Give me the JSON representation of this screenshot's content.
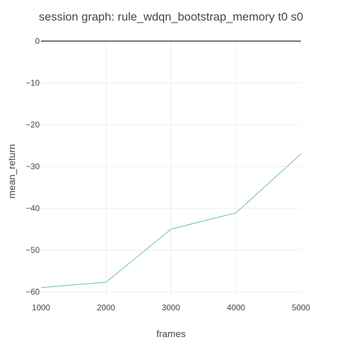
{
  "chart_data": {
    "type": "line",
    "title": "session graph: rule_wdqn_bootstrap_memory t0 s0",
    "xlabel": "frames",
    "ylabel": "mean_return",
    "xlim": [
      1000,
      5000
    ],
    "ylim": [
      -61,
      0
    ],
    "x_ticks": [
      1000,
      2000,
      3000,
      4000,
      5000
    ],
    "x_tick_labels": [
      "1000",
      "2000",
      "3000",
      "4000",
      "5000"
    ],
    "y_ticks": [
      0,
      -10,
      -20,
      -30,
      -40,
      -50,
      -60
    ],
    "y_tick_labels": [
      "0",
      "−10",
      "−20",
      "−30",
      "−40",
      "−50",
      "−60"
    ],
    "grid": true,
    "series": [
      {
        "x": [
          1000,
          2000,
          3000,
          4000,
          5000
        ],
        "y": [
          -59.0,
          -57.7,
          -45.0,
          -41.1,
          -27.0
        ],
        "color": "#66c2a5"
      }
    ],
    "colors": {
      "grid": "#eeeeee",
      "zero_line": "#444444",
      "text": "#444444"
    }
  }
}
